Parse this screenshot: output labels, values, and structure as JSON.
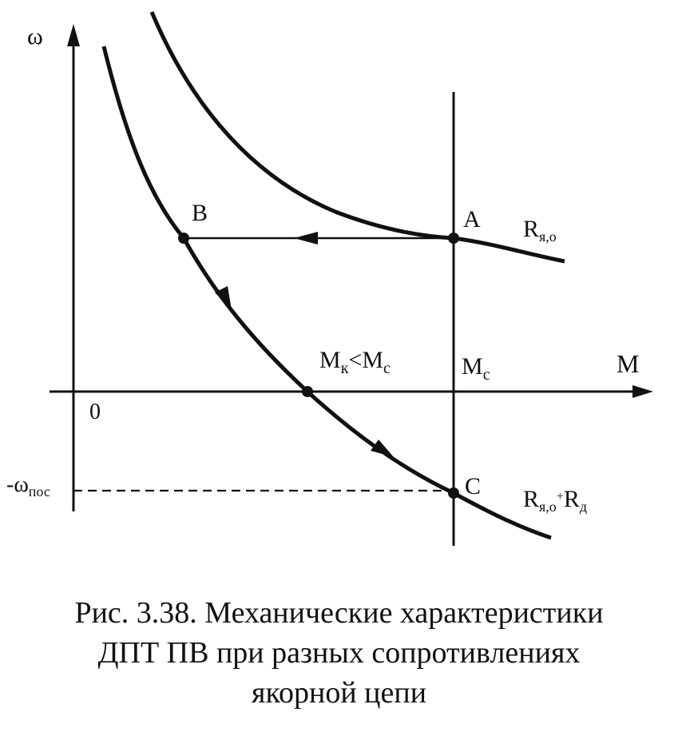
{
  "axes": {
    "y_label": "ω",
    "x_label": "M",
    "origin_label": "0",
    "neg_speed_label": "-ω",
    "neg_speed_sub": "пос"
  },
  "curves": [
    {
      "label": "R",
      "sub": "я,о"
    },
    {
      "label": "R",
      "sub1": "я,о",
      "plus": "+",
      "label2": "R",
      "sub2": "д"
    }
  ],
  "points": {
    "A": "A",
    "B": "B",
    "C": "C",
    "Mc_label": "M",
    "Mc_sub": "с",
    "Mk_label": "M",
    "Mk_sub": "к",
    "Mk_rel": "<M",
    "Mk_rel_sub": "с"
  },
  "caption": {
    "line1": "Рис. 3.38. Механические характеристики",
    "line2": "ДПТ ПВ при разных сопротивлениях",
    "line3": "якорной цепи"
  }
}
